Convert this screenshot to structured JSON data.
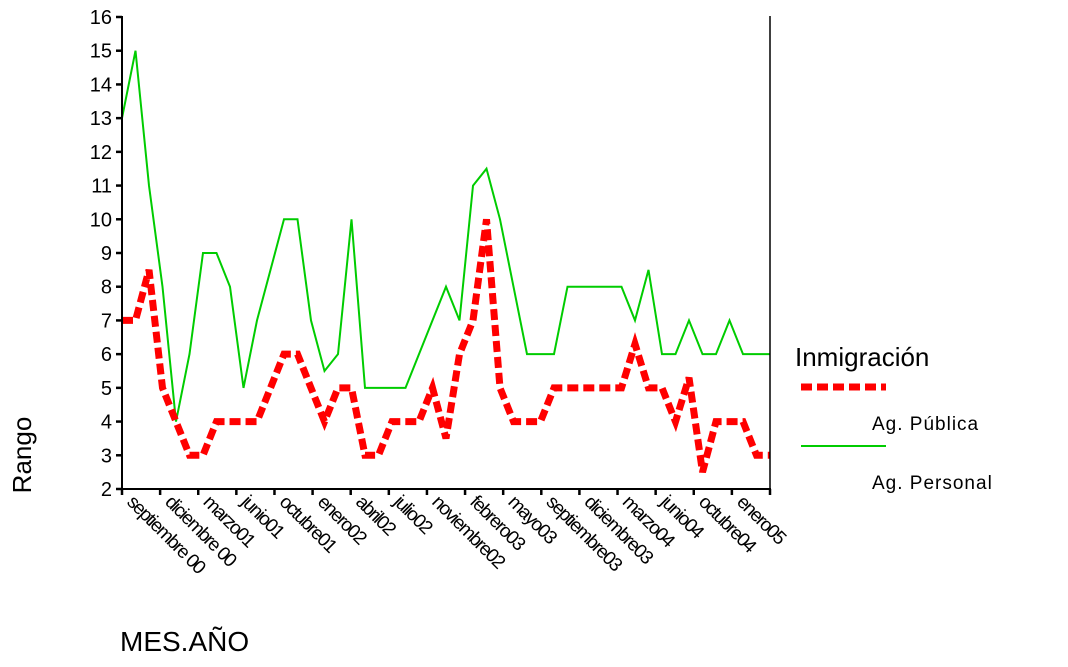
{
  "chart_data": {
    "type": "line",
    "title": "",
    "xlabel": "MES.AÑO",
    "ylabel": "Rango",
    "ylim": [
      2,
      16
    ],
    "yticks": [
      2,
      3,
      4,
      5,
      6,
      7,
      8,
      9,
      10,
      11,
      12,
      13,
      14,
      15,
      16
    ],
    "grid": false,
    "legend_title": "Inmigración",
    "legend_position": "right",
    "x_tick_labels": [
      "septiembre 00",
      "diciembre 00",
      "marzo01",
      "junio01",
      "octubre01",
      "enero02",
      "abril02",
      "julio02",
      "noviembre02",
      "febrero03",
      "mayo03",
      "septiembre03",
      "diciembre03",
      "marzo04",
      "junio04",
      "octubre04",
      "enero05"
    ],
    "series": [
      {
        "name": "Ag. Pública",
        "color": "#ff0000",
        "style": "dashed-thick",
        "values": [
          7,
          7,
          8.5,
          5,
          4,
          3,
          3,
          4,
          4,
          4,
          4,
          5,
          6,
          6,
          5,
          4,
          5,
          5,
          3,
          3,
          4,
          4,
          4,
          5,
          3.5,
          6,
          7,
          10,
          5,
          4,
          4,
          4,
          5,
          5,
          5,
          5,
          5,
          5,
          6.3,
          5,
          5,
          4,
          5.3,
          2.5,
          4,
          4,
          4,
          3,
          3
        ]
      },
      {
        "name": "Ag. Personal",
        "color": "#00cc00",
        "style": "solid",
        "values": [
          13,
          15,
          11,
          8,
          4,
          6,
          9,
          9,
          8,
          5,
          7,
          8.5,
          10,
          10,
          7,
          5.5,
          6,
          10,
          5,
          5,
          5,
          5,
          6,
          7,
          8,
          7,
          11,
          11.5,
          10,
          8,
          6,
          6,
          6,
          8,
          8,
          8,
          8,
          8,
          7,
          8.5,
          6,
          6,
          7,
          6,
          6,
          7,
          6,
          6,
          6
        ]
      }
    ]
  }
}
